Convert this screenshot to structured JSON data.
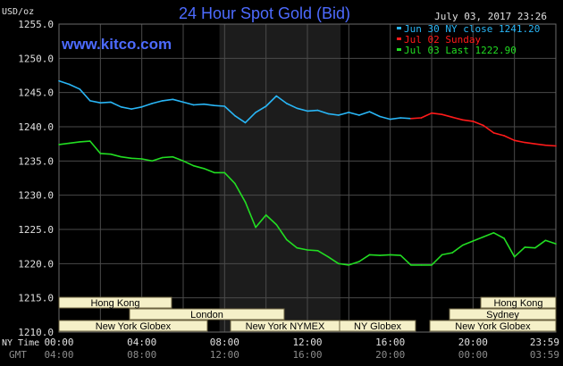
{
  "header": {
    "title": "24 Hour Spot Gold (Bid)",
    "datetime": "July 03, 2017 23:26",
    "brand": "www.kitco.com",
    "y_unit": "USD/oz"
  },
  "axis_labels": {
    "ny_time": "NY Time",
    "gmt": "GMT"
  },
  "colors": {
    "background": "#000000",
    "grid": "#4a4a4a",
    "ny_session_shade": "#1c1c1c",
    "jun30": "#29b6f6",
    "jul02": "#ff1a1a",
    "jul03": "#22dd22",
    "session_box": "#f5f0c8",
    "title": "#4d6bff"
  },
  "legend": [
    {
      "text": "Jun 30 NY close 1241.20",
      "color": "#29b6f6"
    },
    {
      "text": "Jul 02 Sunday",
      "color": "#ff1a1a"
    },
    {
      "text": "Jul 03 Last 1222.90",
      "color": "#22dd22"
    }
  ],
  "sessions": {
    "left": [
      {
        "label": "Hong Kong"
      },
      {
        "label": "London"
      },
      {
        "label": "New York Globex"
      },
      {
        "label": "New York NYMEX"
      },
      {
        "label": "NY Globex"
      }
    ],
    "right": [
      {
        "label": "Hong Kong"
      },
      {
        "label": "Sydney"
      },
      {
        "label": "New York Globex"
      }
    ]
  },
  "chart_data": {
    "type": "line",
    "title": "24 Hour Spot Gold (Bid)",
    "ylabel": "USD/oz",
    "xlabel": "",
    "ylim": [
      1210,
      1255
    ],
    "xlim": [
      0,
      24
    ],
    "grid": true,
    "legend_position": "top-right",
    "y_ticks": [
      "1255.0",
      "1250.0",
      "1245.0",
      "1240.0",
      "1235.0",
      "1230.0",
      "1225.0",
      "1220.0",
      "1215.0",
      "1210.0"
    ],
    "y_tick_values": [
      1255,
      1250,
      1245,
      1240,
      1235,
      1230,
      1225,
      1220,
      1215,
      1210
    ],
    "x_ticks_ny": [
      "00:00",
      "04:00",
      "08:00",
      "12:00",
      "16:00",
      "20:00",
      "23:59"
    ],
    "x_ticks_gmt": [
      "04:00",
      "08:00",
      "12:00",
      "16:00",
      "20:00",
      "00:00",
      "03:59"
    ],
    "x_tick_hours": [
      0,
      4,
      8,
      12,
      16,
      20,
      24
    ],
    "series": [
      {
        "name": "Jun 30 NY close 1241.20",
        "color": "#29b6f6",
        "x": [
          0,
          0.5,
          1,
          1.5,
          2,
          2.5,
          3,
          3.5,
          4,
          4.5,
          5,
          5.5,
          6,
          6.5,
          7,
          7.5,
          8,
          8.5,
          9,
          9.5,
          10,
          10.5,
          11,
          11.5,
          12,
          12.5,
          13,
          13.5,
          14,
          14.5,
          15,
          15.5,
          16,
          16.5,
          17
        ],
        "values": [
          1246.7,
          1246.2,
          1245.5,
          1243.8,
          1243.5,
          1243.6,
          1242.9,
          1242.6,
          1242.9,
          1243.4,
          1243.8,
          1244.0,
          1243.6,
          1243.2,
          1243.3,
          1243.1,
          1243.0,
          1241.6,
          1240.6,
          1242.1,
          1243.0,
          1244.5,
          1243.4,
          1242.7,
          1242.3,
          1242.4,
          1241.9,
          1241.7,
          1242.1,
          1241.7,
          1242.2,
          1241.5,
          1241.1,
          1241.3,
          1241.2
        ]
      },
      {
        "name": "Jul 02 Sunday",
        "color": "#ff1a1a",
        "x": [
          17,
          17.5,
          18,
          18.5,
          19,
          19.5,
          20,
          20.5,
          21,
          21.5,
          22,
          22.5,
          23,
          23.5,
          24
        ],
        "values": [
          1241.2,
          1241.3,
          1242.0,
          1241.8,
          1241.4,
          1241.0,
          1240.8,
          1240.2,
          1239.1,
          1238.7,
          1238.0,
          1237.7,
          1237.5,
          1237.3,
          1237.2
        ]
      },
      {
        "name": "Jul 03 Last 1222.90",
        "color": "#22dd22",
        "x": [
          0,
          0.5,
          1,
          1.5,
          2,
          2.5,
          3,
          3.5,
          4,
          4.5,
          5,
          5.5,
          6,
          6.5,
          7,
          7.5,
          8,
          8.5,
          9,
          9.5,
          10,
          10.5,
          11,
          11.5,
          12,
          12.5,
          13,
          13.5,
          14,
          14.5,
          15,
          15.5,
          16,
          16.5,
          17,
          17.5,
          18,
          18.5,
          19,
          19.5,
          20,
          20.5,
          21,
          21.5,
          22,
          22.5,
          23,
          23.5,
          24
        ],
        "values": [
          1237.4,
          1237.6,
          1237.8,
          1237.9,
          1236.1,
          1236.0,
          1235.6,
          1235.4,
          1235.3,
          1235.0,
          1235.5,
          1235.6,
          1235.0,
          1234.3,
          1233.9,
          1233.3,
          1233.3,
          1231.7,
          1229.0,
          1225.3,
          1227.1,
          1225.7,
          1223.5,
          1222.3,
          1222.0,
          1221.9,
          1221.0,
          1220.0,
          1219.8,
          1220.3,
          1221.3,
          1221.2,
          1221.3,
          1221.2,
          1219.8,
          1219.8,
          1219.8,
          1221.3,
          1221.6,
          1222.7,
          1223.3,
          1223.9,
          1224.5,
          1223.7,
          1221.0,
          1222.4,
          1222.3,
          1223.4,
          1222.9
        ]
      }
    ]
  }
}
